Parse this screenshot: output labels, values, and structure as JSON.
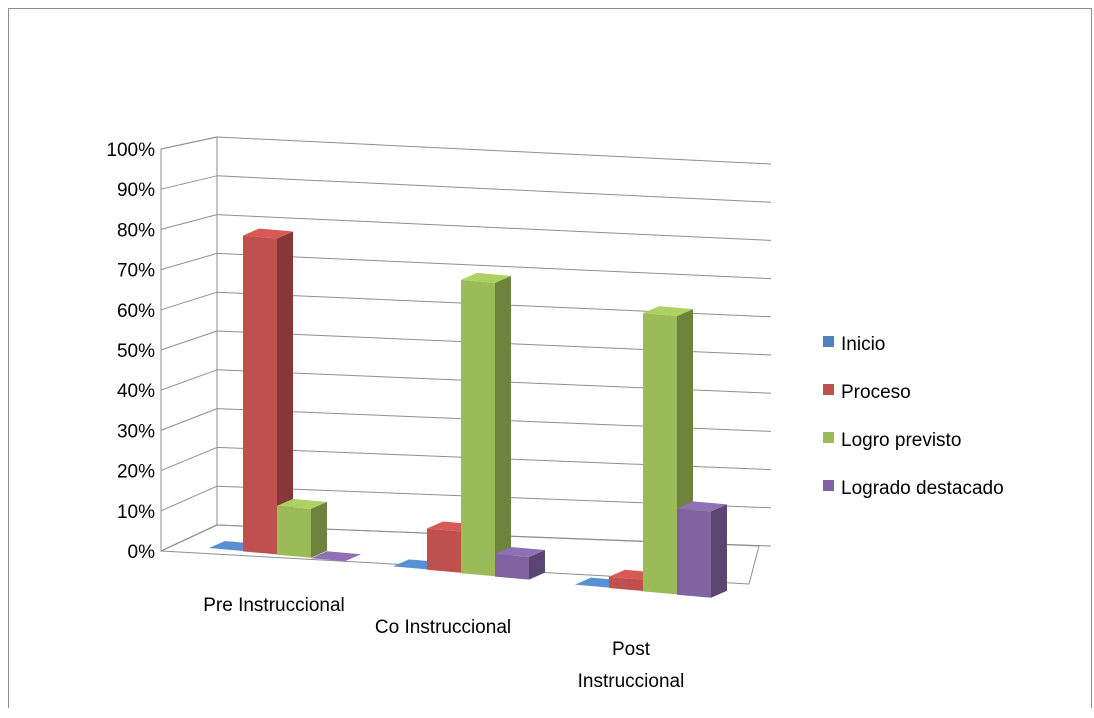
{
  "chart_data": {
    "type": "bar",
    "style": "3d-clustered-column",
    "categories": [
      "Pre Instruccional",
      "Co Instruccional",
      "Post Instruccional"
    ],
    "series": [
      {
        "name": "Inicio",
        "values": [
          0,
          0,
          0
        ],
        "color": "#4F81BD"
      },
      {
        "name": "Proceso",
        "values": [
          84,
          11,
          3
        ],
        "color": "#C0504D"
      },
      {
        "name": "Logro previsto",
        "values": [
          13,
          78,
          74
        ],
        "color": "#9BBB59"
      },
      {
        "name": "Logrado destacado",
        "values": [
          0,
          6,
          23
        ],
        "color": "#8064A2"
      }
    ],
    "y_ticks": [
      "0%",
      "10%",
      "20%",
      "30%",
      "40%",
      "50%",
      "60%",
      "70%",
      "80%",
      "90%",
      "100%"
    ],
    "ylim": [
      0,
      100
    ],
    "legend_position": "right",
    "grid": true
  }
}
